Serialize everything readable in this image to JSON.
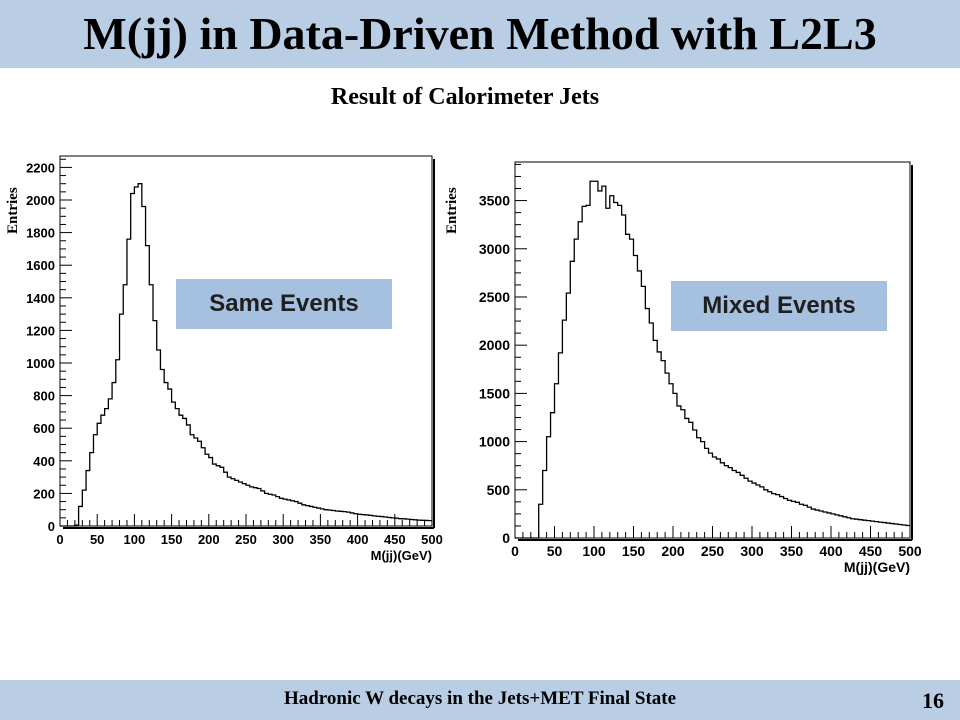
{
  "slide": {
    "title": "M(jj) in Data-Driven Method with L2L3",
    "subtitle": "Result of Calorimeter Jets",
    "footer": "Hadronic W decays in the Jets+MET Final State",
    "page_number": "16",
    "colors": {
      "banner": "#b9cde5",
      "callout": "#a6c0e0"
    }
  },
  "chart_data": [
    {
      "type": "bar",
      "style": "step-histogram",
      "callout": "Same Events",
      "xlabel": "M(jj)(GeV)",
      "ylabel": "Entries",
      "xlim": [
        0,
        500
      ],
      "ylim": [
        0,
        2270
      ],
      "x_ticks": [
        0,
        50,
        100,
        150,
        200,
        250,
        300,
        350,
        400,
        450,
        500
      ],
      "y_ticks": [
        0,
        200,
        400,
        600,
        800,
        1000,
        1200,
        1400,
        1600,
        1800,
        2000,
        2200
      ],
      "bin_width": 5,
      "values": [
        0,
        0,
        0,
        0,
        5,
        120,
        220,
        340,
        450,
        560,
        630,
        680,
        720,
        780,
        880,
        1020,
        1300,
        1480,
        1760,
        2040,
        2080,
        2100,
        1960,
        1720,
        1480,
        1260,
        1080,
        960,
        880,
        840,
        760,
        720,
        680,
        660,
        620,
        560,
        540,
        520,
        480,
        440,
        420,
        380,
        370,
        360,
        330,
        300,
        290,
        280,
        270,
        260,
        250,
        240,
        235,
        230,
        215,
        200,
        195,
        190,
        180,
        170,
        165,
        160,
        155,
        150,
        140,
        130,
        125,
        120,
        115,
        110,
        105,
        100,
        98,
        95,
        92,
        90,
        88,
        85,
        80,
        75,
        72,
        70,
        68,
        65,
        62,
        60,
        58,
        55,
        52,
        50,
        48,
        45,
        44,
        42,
        40,
        38,
        36,
        35,
        34,
        33
      ]
    },
    {
      "type": "bar",
      "style": "step-histogram",
      "callout": "Mixed Events",
      "xlabel": "M(jj)(GeV)",
      "ylabel": "Entries",
      "xlim": [
        0,
        500
      ],
      "ylim": [
        0,
        3900
      ],
      "x_ticks": [
        0,
        50,
        100,
        150,
        200,
        250,
        300,
        350,
        400,
        450,
        500
      ],
      "y_ticks": [
        0,
        500,
        1000,
        1500,
        2000,
        2500,
        3000,
        3500
      ],
      "bin_width": 5,
      "values": [
        0,
        0,
        0,
        0,
        0,
        0,
        350,
        700,
        1050,
        1300,
        1600,
        1920,
        2260,
        2540,
        2870,
        3100,
        3280,
        3440,
        3450,
        3700,
        3700,
        3600,
        3650,
        3420,
        3550,
        3480,
        3450,
        3350,
        3150,
        3100,
        2930,
        2770,
        2610,
        2380,
        2230,
        2050,
        1930,
        1840,
        1710,
        1600,
        1500,
        1370,
        1330,
        1240,
        1200,
        1120,
        1040,
        1000,
        930,
        880,
        840,
        820,
        780,
        750,
        730,
        700,
        680,
        650,
        620,
        590,
        570,
        550,
        530,
        500,
        480,
        460,
        450,
        430,
        410,
        390,
        380,
        370,
        350,
        340,
        320,
        300,
        290,
        280,
        270,
        260,
        250,
        240,
        230,
        220,
        210,
        200,
        195,
        190,
        185,
        180,
        175,
        170,
        165,
        160,
        155,
        150,
        145,
        140,
        135,
        130
      ]
    }
  ]
}
